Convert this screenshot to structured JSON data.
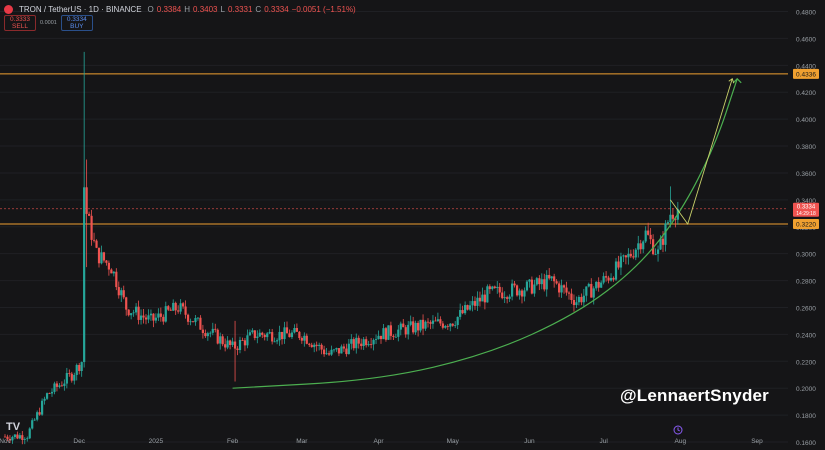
{
  "header": {
    "symbol": "TRON / TetherUS · 1D · BINANCE",
    "ohlc": [
      {
        "key": "O",
        "value": "0.3384"
      },
      {
        "key": "H",
        "value": "0.3403"
      },
      {
        "key": "L",
        "value": "0.3331"
      },
      {
        "key": "C",
        "value": "0.3334"
      }
    ],
    "change": "−0.0051 (−1.51%)"
  },
  "trade": {
    "sell_price": "0.3333",
    "sell_label": "SELL",
    "spread": "0.0001",
    "buy_price": "0.3334",
    "buy_label": "BUY"
  },
  "watermark": "@LennaertSnyder",
  "logo": "TV",
  "colors": {
    "background": "#151517",
    "up": "#26a69a",
    "down": "#ef5350",
    "level_line": "#f0a030",
    "curve": "#4caf50",
    "projection": "#c8d16a"
  },
  "chart_data": {
    "type": "candlestick",
    "price_axis": {
      "min": 0.14,
      "max": 0.48,
      "tick_values": [
        0.48,
        0.46,
        0.44,
        0.42,
        0.4,
        0.38,
        0.36,
        0.34,
        0.32,
        0.3,
        0.28,
        0.26,
        0.24,
        0.22,
        0.2,
        0.18,
        0.16
      ],
      "tick_labels": [
        "0.4800",
        "0.4600",
        "0.4400",
        "0.4200",
        "0.4000",
        "0.3800",
        "0.3600",
        "0.3400",
        "0.3200",
        "0.3000",
        "0.2800",
        "0.2600",
        "0.2400",
        "0.2200",
        "0.2000",
        "0.1800",
        "0.1600"
      ]
    },
    "time_axis": {
      "start": "2024-11-01",
      "end": "2025-09-01",
      "labels": [
        {
          "label": "Nov",
          "date": "2024-11-01"
        },
        {
          "label": "Dec",
          "date": "2024-12-01"
        },
        {
          "label": "2025",
          "date": "2025-01-01"
        },
        {
          "label": "Feb",
          "date": "2025-02-01"
        },
        {
          "label": "Mar",
          "date": "2025-03-01"
        },
        {
          "label": "Apr",
          "date": "2025-04-01"
        },
        {
          "label": "May",
          "date": "2025-05-01"
        },
        {
          "label": "Jun",
          "date": "2025-06-01"
        },
        {
          "label": "Jul",
          "date": "2025-07-01"
        },
        {
          "label": "Aug",
          "date": "2025-08-01"
        },
        {
          "label": "Sep",
          "date": "2025-09-01"
        }
      ]
    },
    "close_path": [
      {
        "date": "2024-11-01",
        "close": 0.164
      },
      {
        "date": "2024-11-10",
        "close": 0.165
      },
      {
        "date": "2024-11-18",
        "close": 0.195
      },
      {
        "date": "2024-11-28",
        "close": 0.21
      },
      {
        "date": "2024-12-02",
        "close": 0.22
      },
      {
        "date": "2024-12-03",
        "close": 0.35
      },
      {
        "date": "2024-12-04",
        "close": 0.33
      },
      {
        "date": "2024-12-08",
        "close": 0.3
      },
      {
        "date": "2024-12-14",
        "close": 0.29
      },
      {
        "date": "2024-12-20",
        "close": 0.26
      },
      {
        "date": "2024-12-30",
        "close": 0.25
      },
      {
        "date": "2025-01-10",
        "close": 0.26
      },
      {
        "date": "2025-01-20",
        "close": 0.245
      },
      {
        "date": "2025-02-01",
        "close": 0.23
      },
      {
        "date": "2025-02-10",
        "close": 0.24
      },
      {
        "date": "2025-03-01",
        "close": 0.24
      },
      {
        "date": "2025-03-12",
        "close": 0.225
      },
      {
        "date": "2025-04-01",
        "close": 0.24
      },
      {
        "date": "2025-04-15",
        "close": 0.245
      },
      {
        "date": "2025-05-01",
        "close": 0.25
      },
      {
        "date": "2025-05-15",
        "close": 0.27
      },
      {
        "date": "2025-06-01",
        "close": 0.275
      },
      {
        "date": "2025-06-10",
        "close": 0.28
      },
      {
        "date": "2025-06-20",
        "close": 0.265
      },
      {
        "date": "2025-07-01",
        "close": 0.28
      },
      {
        "date": "2025-07-10",
        "close": 0.295
      },
      {
        "date": "2025-07-18",
        "close": 0.315
      },
      {
        "date": "2025-07-23",
        "close": 0.3
      },
      {
        "date": "2025-07-28",
        "close": 0.33
      },
      {
        "date": "2025-07-31",
        "close": 0.3334
      }
    ],
    "spikes": [
      {
        "date": "2024-12-03",
        "high": 0.45,
        "low": 0.22
      },
      {
        "date": "2024-12-04",
        "high": 0.37,
        "low": 0.29
      },
      {
        "date": "2025-02-02",
        "high": 0.25,
        "low": 0.205
      },
      {
        "date": "2025-07-28",
        "high": 0.35,
        "low": 0.32
      }
    ],
    "levels": [
      {
        "price": 0.4336,
        "label": "0.4336"
      },
      {
        "price": 0.322,
        "label": "0.3220"
      }
    ],
    "current_price": {
      "price": 0.3334,
      "label": "0.3334",
      "countdown": "14:29:18"
    },
    "curve": [
      {
        "date": "2025-02-01",
        "price": 0.2
      },
      {
        "date": "2025-04-01",
        "price": 0.206
      },
      {
        "date": "2025-05-15",
        "price": 0.225
      },
      {
        "date": "2025-06-20",
        "price": 0.255
      },
      {
        "date": "2025-07-15",
        "price": 0.29
      },
      {
        "date": "2025-08-01",
        "price": 0.33
      },
      {
        "date": "2025-08-15",
        "price": 0.38
      },
      {
        "date": "2025-08-24",
        "price": 0.43
      }
    ],
    "projection": [
      {
        "date": "2025-07-28",
        "price": 0.34
      },
      {
        "date": "2025-08-04",
        "price": 0.322
      },
      {
        "date": "2025-08-22",
        "price": 0.43
      }
    ]
  }
}
